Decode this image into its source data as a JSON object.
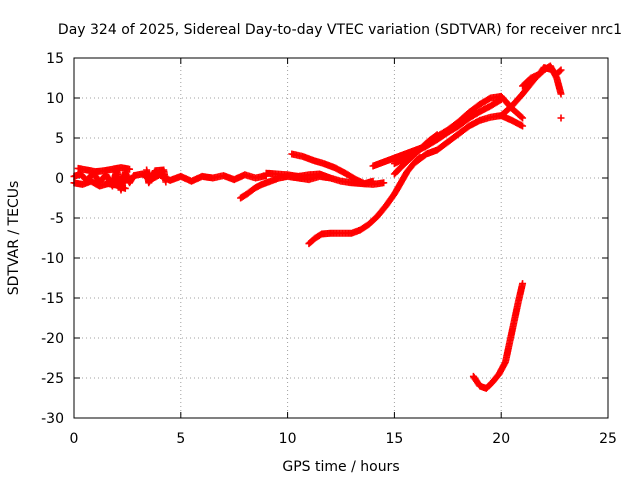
{
  "chart_data": {
    "type": "scatter",
    "title": "Day 324 of 2025, Sidereal Day-to-day VTEC variation (SDTVAR) for receiver nrc1",
    "xlabel": "GPS time / hours",
    "ylabel": "SDTVAR / TECUs",
    "xlim": [
      0,
      25
    ],
    "ylim": [
      -30,
      15
    ],
    "xticks": [
      0,
      5,
      10,
      15,
      20,
      25
    ],
    "yticks": [
      15,
      10,
      5,
      0,
      -5,
      -10,
      -15,
      -20,
      -25,
      -30
    ],
    "grid": true,
    "marker": "plus",
    "color": "#ff0000",
    "series": [
      {
        "name": "track-0-9h",
        "points": [
          [
            0.0,
            0.2
          ],
          [
            0.3,
            0.5
          ],
          [
            0.6,
            -0.3
          ],
          [
            0.9,
            0.6
          ],
          [
            1.2,
            -0.5
          ],
          [
            1.5,
            0.4
          ],
          [
            1.8,
            -1.0
          ],
          [
            2.0,
            1.0
          ],
          [
            2.2,
            -1.5
          ],
          [
            2.4,
            0.7
          ],
          [
            2.6,
            -0.6
          ],
          [
            2.8,
            0.3
          ],
          [
            3.2,
            0.5
          ],
          [
            3.6,
            -0.2
          ],
          [
            4.0,
            0.4
          ],
          [
            4.5,
            -0.3
          ],
          [
            5.0,
            0.2
          ],
          [
            5.5,
            -0.4
          ],
          [
            6.0,
            0.2
          ],
          [
            6.5,
            0.0
          ],
          [
            7.0,
            0.3
          ],
          [
            7.5,
            -0.2
          ],
          [
            8.0,
            0.4
          ],
          [
            8.5,
            0.0
          ],
          [
            9.0,
            0.3
          ]
        ]
      },
      {
        "name": "track-0-2h-lower",
        "points": [
          [
            0.0,
            -0.6
          ],
          [
            0.4,
            -0.8
          ],
          [
            0.8,
            -0.4
          ],
          [
            1.2,
            -1.0
          ],
          [
            1.6,
            -0.7
          ],
          [
            2.0,
            -0.9
          ],
          [
            2.4,
            -1.3
          ]
        ]
      },
      {
        "name": "track-0-2h-upper",
        "points": [
          [
            0.2,
            1.2
          ],
          [
            0.6,
            1.0
          ],
          [
            1.0,
            0.8
          ],
          [
            1.4,
            0.9
          ],
          [
            1.8,
            1.1
          ],
          [
            2.2,
            1.3
          ],
          [
            2.6,
            1.1
          ]
        ]
      },
      {
        "name": "spikes-3-4h",
        "points": [
          [
            3.4,
            1.0
          ],
          [
            3.5,
            -0.6
          ],
          [
            3.8,
            0.9
          ],
          [
            4.2,
            1.0
          ],
          [
            4.3,
            -0.5
          ]
        ]
      },
      {
        "name": "track-7-10h",
        "points": [
          [
            7.8,
            -2.5
          ],
          [
            8.1,
            -2.0
          ],
          [
            8.5,
            -1.2
          ],
          [
            8.8,
            -0.8
          ],
          [
            9.2,
            -0.4
          ],
          [
            9.6,
            0.0
          ],
          [
            10.0,
            0.2
          ],
          [
            10.5,
            0.0
          ],
          [
            11.0,
            -0.2
          ],
          [
            11.5,
            0.2
          ],
          [
            12.0,
            0.0
          ]
        ]
      },
      {
        "name": "track-10-14h",
        "points": [
          [
            10.2,
            3.0
          ],
          [
            10.7,
            2.7
          ],
          [
            11.2,
            2.2
          ],
          [
            11.7,
            1.8
          ],
          [
            12.2,
            1.3
          ],
          [
            12.7,
            0.6
          ],
          [
            13.2,
            -0.2
          ],
          [
            13.6,
            -0.7
          ],
          [
            14.0,
            -0.4
          ]
        ]
      },
      {
        "name": "track-9-14h-base",
        "points": [
          [
            9.0,
            0.6
          ],
          [
            9.5,
            0.5
          ],
          [
            10.0,
            0.4
          ],
          [
            10.5,
            0.2
          ],
          [
            11.0,
            0.4
          ],
          [
            11.5,
            0.5
          ],
          [
            12.0,
            0.0
          ],
          [
            12.5,
            -0.4
          ],
          [
            13.0,
            -0.6
          ],
          [
            13.5,
            -0.7
          ],
          [
            14.0,
            -0.8
          ],
          [
            14.5,
            -0.6
          ]
        ]
      },
      {
        "name": "track-11-15h",
        "points": [
          [
            11.0,
            -8.2
          ],
          [
            11.3,
            -7.5
          ],
          [
            11.6,
            -7.0
          ],
          [
            12.0,
            -6.9
          ],
          [
            12.5,
            -6.9
          ],
          [
            13.0,
            -6.9
          ],
          [
            13.4,
            -6.5
          ],
          [
            13.8,
            -5.8
          ],
          [
            14.2,
            -4.8
          ],
          [
            14.6,
            -3.5
          ],
          [
            15.0,
            -2.0
          ],
          [
            15.3,
            -0.6
          ],
          [
            15.6,
            0.8
          ],
          [
            15.9,
            1.8
          ],
          [
            16.2,
            2.6
          ]
        ]
      },
      {
        "name": "track-14-20h",
        "points": [
          [
            14.0,
            1.5
          ],
          [
            14.5,
            2.0
          ],
          [
            15.0,
            2.5
          ],
          [
            15.5,
            3.0
          ],
          [
            16.0,
            3.5
          ],
          [
            16.5,
            4.0
          ],
          [
            17.0,
            4.8
          ],
          [
            17.5,
            5.7
          ],
          [
            18.0,
            6.5
          ],
          [
            18.5,
            7.5
          ],
          [
            19.0,
            8.3
          ],
          [
            19.5,
            9.0
          ],
          [
            20.0,
            9.8
          ]
        ]
      },
      {
        "name": "track-15-21h",
        "points": [
          [
            15.0,
            1.8
          ],
          [
            15.5,
            2.5
          ],
          [
            16.0,
            3.3
          ],
          [
            16.5,
            4.0
          ],
          [
            17.0,
            5.2
          ],
          [
            17.5,
            6.0
          ],
          [
            18.0,
            7.0
          ],
          [
            18.5,
            8.2
          ],
          [
            19.0,
            9.2
          ],
          [
            19.5,
            10.0
          ],
          [
            20.0,
            10.2
          ],
          [
            20.5,
            8.7
          ],
          [
            21.0,
            7.5
          ]
        ]
      },
      {
        "name": "track-16-21h",
        "points": [
          [
            16.0,
            2.0
          ],
          [
            16.5,
            3.0
          ],
          [
            17.0,
            3.5
          ],
          [
            17.5,
            4.5
          ],
          [
            18.0,
            5.5
          ],
          [
            18.5,
            6.5
          ],
          [
            19.0,
            7.2
          ],
          [
            19.5,
            7.6
          ],
          [
            20.0,
            7.8
          ],
          [
            20.5,
            7.2
          ],
          [
            21.0,
            6.5
          ]
        ]
      },
      {
        "name": "track-15-17h-mid",
        "points": [
          [
            15.0,
            0.5
          ],
          [
            15.4,
            1.6
          ],
          [
            15.8,
            2.6
          ],
          [
            16.2,
            3.6
          ],
          [
            16.6,
            4.6
          ],
          [
            17.0,
            5.4
          ]
        ]
      },
      {
        "name": "track-20-23h",
        "points": [
          [
            20.0,
            7.8
          ],
          [
            20.5,
            9.0
          ],
          [
            21.0,
            10.5
          ],
          [
            21.3,
            11.5
          ],
          [
            21.6,
            12.5
          ],
          [
            22.0,
            13.5
          ],
          [
            22.3,
            14.0
          ],
          [
            22.6,
            12.5
          ],
          [
            22.8,
            10.5
          ]
        ]
      },
      {
        "name": "track-21-23h-upper",
        "points": [
          [
            21.0,
            11.5
          ],
          [
            21.4,
            12.5
          ],
          [
            21.8,
            13.0
          ],
          [
            22.0,
            13.8
          ],
          [
            22.3,
            13.6
          ],
          [
            22.6,
            13.0
          ],
          [
            22.8,
            13.5
          ]
        ]
      },
      {
        "name": "outlier-22.8h",
        "points": [
          [
            22.8,
            7.5
          ]
        ]
      },
      {
        "name": "track-18-21h",
        "points": [
          [
            18.7,
            -24.8
          ],
          [
            19.0,
            -26.0
          ],
          [
            19.3,
            -26.3
          ],
          [
            19.6,
            -25.5
          ],
          [
            19.9,
            -24.5
          ],
          [
            20.2,
            -23.0
          ],
          [
            20.4,
            -20.5
          ],
          [
            20.6,
            -18.0
          ],
          [
            20.8,
            -15.5
          ],
          [
            21.0,
            -13.2
          ]
        ]
      }
    ]
  }
}
